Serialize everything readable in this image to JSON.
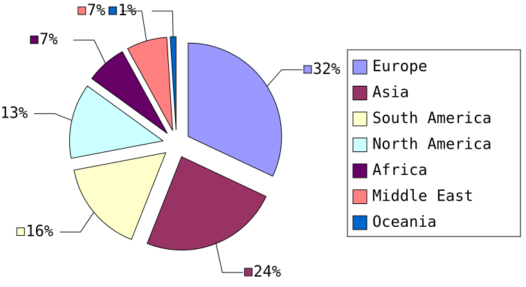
{
  "chart_data": {
    "type": "pie",
    "categories": [
      "Europe",
      "Asia",
      "South America",
      "North America",
      "Africa",
      "Middle East",
      "Oceania"
    ],
    "values": [
      32,
      24,
      16,
      13,
      7,
      7,
      1
    ],
    "value_labels": [
      "32%",
      "24%",
      "16%",
      "13%",
      "7%",
      "7%",
      "1%"
    ],
    "colors": [
      "#9999ff",
      "#993366",
      "#ffffcc",
      "#ccffff",
      "#660066",
      "#ff8080",
      "#0066cc"
    ],
    "legend": "right"
  }
}
